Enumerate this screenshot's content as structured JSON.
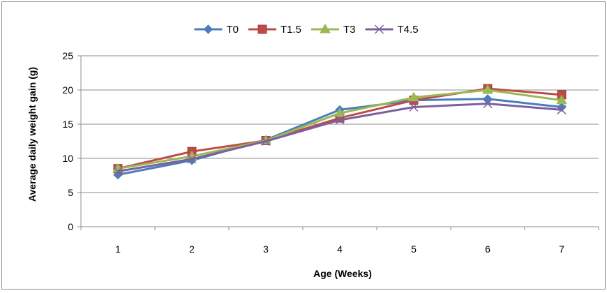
{
  "chart_data": {
    "type": "line",
    "title": "",
    "xlabel": "Age (Weeks)",
    "ylabel": "Average daily weight gain (g)",
    "categories": [
      "1",
      "2",
      "3",
      "4",
      "5",
      "6",
      "7"
    ],
    "ylim": [
      0,
      25
    ],
    "yticks": [
      "0",
      "5",
      "10",
      "15",
      "20",
      "25"
    ],
    "grid": true,
    "legend_position": "top",
    "series": [
      {
        "name": "T0",
        "color": "#4a7ebb",
        "marker": "diamond",
        "values": [
          7.6,
          9.7,
          12.7,
          17.1,
          18.5,
          18.7,
          17.5
        ]
      },
      {
        "name": "T1.5",
        "color": "#be4b48",
        "marker": "square",
        "values": [
          8.5,
          11.0,
          12.6,
          15.9,
          18.5,
          20.2,
          19.3
        ]
      },
      {
        "name": "T3",
        "color": "#98b954",
        "marker": "triangle",
        "values": [
          8.5,
          10.3,
          12.6,
          16.6,
          18.9,
          20.0,
          18.5
        ]
      },
      {
        "name": "T4.5",
        "color": "#7d5fa0",
        "marker": "x",
        "values": [
          8.1,
          9.9,
          12.5,
          15.6,
          17.5,
          18.0,
          17.1
        ]
      }
    ]
  }
}
